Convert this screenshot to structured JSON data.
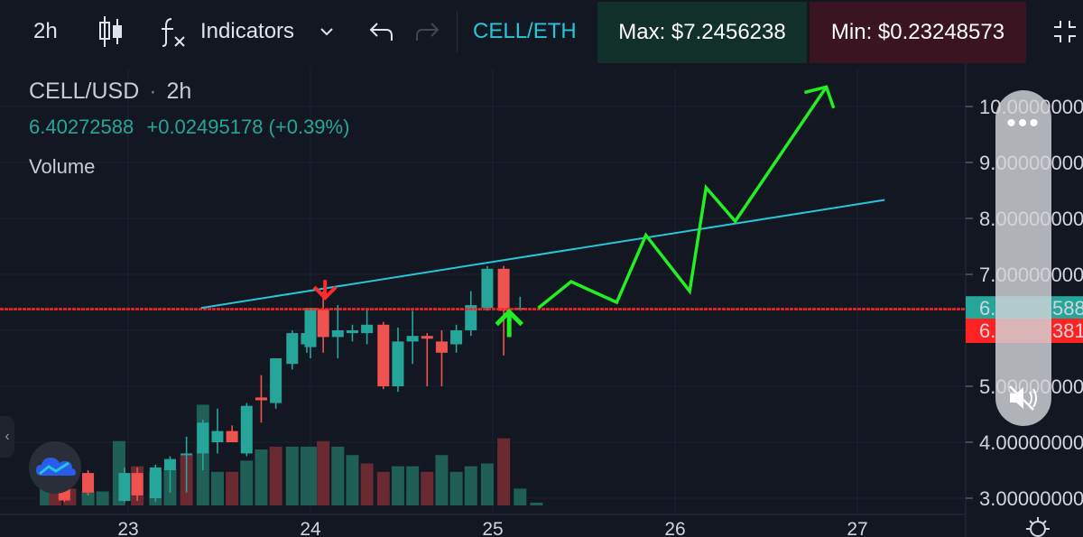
{
  "toolbar": {
    "interval": "2h",
    "indicators_label": "Indicators",
    "pair": "CELL/ETH",
    "max_label": "Max: $7.2456238",
    "min_label": "Min: $0.23248573"
  },
  "legend": {
    "symbol": "CELL/USD",
    "separator": "·",
    "interval": "2h",
    "price": "6.40272588",
    "change": "+0.02495178 (+0.39%)",
    "volume_label": "Volume"
  },
  "colors": {
    "background": "#131722",
    "up": "#26a69a",
    "down": "#ef5350",
    "trendline": "#26c6da",
    "arrow_forecast": "#22ee22",
    "arrow_red": "#ff2a2a",
    "support_line": "#ff2222"
  },
  "icons": {
    "candles": "candlestick-icon",
    "indicators": "function-fx-icon",
    "undo": "undo-icon",
    "redo": "redo-icon",
    "fullscreen": "collapse-icon",
    "menu": "grid-menu-icon",
    "settings": "gear-icon",
    "mute": "mute-icon",
    "brand": "cloud-logo-icon"
  },
  "chart_data": {
    "type": "bar",
    "x_ticks": [
      "23",
      "24",
      "25",
      "26",
      "27"
    ],
    "y_tick_labels": [
      "3.00000000",
      "4.00000000",
      "5.",
      "6.",
      "6.",
      "7.",
      "8.",
      "9.",
      "10."
    ],
    "y_labels_right": [
      {
        "value": 3.0,
        "label": "3.00000000"
      },
      {
        "value": 4.0,
        "label": "4.00000000"
      },
      {
        "value": 5.0,
        "label": "5.00000000"
      },
      {
        "value": 7.0,
        "label": "7.00000000"
      },
      {
        "value": 8.0,
        "label": "8.00000000"
      },
      {
        "value": 9.0,
        "label": "9.00000000"
      },
      {
        "value": 10.0,
        "label": "10.00000000"
      }
    ],
    "ylim": [
      2.93,
      10.9
    ],
    "price_tags": [
      {
        "value": 6.4,
        "label": "6.",
        "suffix": "588",
        "color": "#26a69a"
      },
      {
        "value": 6.0,
        "label": "6.",
        "suffix": "381",
        "color": "#ff2222"
      }
    ],
    "support_level": 6.38,
    "candles": [
      {
        "d": 22.65,
        "o": 3.5,
        "h": 3.5,
        "l": 2.93,
        "c": 2.96
      },
      {
        "d": 22.78,
        "o": 3.45,
        "h": 3.5,
        "l": 3.05,
        "c": 3.1
      },
      {
        "d": 22.98,
        "o": 2.95,
        "h": 3.55,
        "l": 2.93,
        "c": 3.45
      },
      {
        "d": 23.05,
        "o": 3.45,
        "h": 3.55,
        "l": 2.95,
        "c": 3.05
      },
      {
        "d": 23.15,
        "o": 3.0,
        "h": 3.6,
        "l": 2.93,
        "c": 3.55
      },
      {
        "d": 23.23,
        "o": 3.5,
        "h": 3.75,
        "l": 3.1,
        "c": 3.7
      },
      {
        "d": 23.32,
        "o": 3.8,
        "h": 4.1,
        "l": 3.1,
        "c": 3.8
      },
      {
        "d": 23.41,
        "o": 3.8,
        "h": 4.4,
        "l": 3.5,
        "c": 4.35
      },
      {
        "d": 23.49,
        "o": 4.0,
        "h": 4.6,
        "l": 3.8,
        "c": 4.2
      },
      {
        "d": 23.57,
        "o": 4.2,
        "h": 4.3,
        "l": 4.0,
        "c": 4.0
      },
      {
        "d": 23.65,
        "o": 3.8,
        "h": 4.7,
        "l": 3.75,
        "c": 4.65
      },
      {
        "d": 23.73,
        "o": 4.8,
        "h": 5.2,
        "l": 4.35,
        "c": 4.75
      },
      {
        "d": 23.81,
        "o": 4.7,
        "h": 5.5,
        "l": 4.6,
        "c": 5.5
      },
      {
        "d": 23.9,
        "o": 5.4,
        "h": 6.0,
        "l": 5.3,
        "c": 5.95
      },
      {
        "d": 23.98,
        "o": 5.75,
        "h": 6.0,
        "l": 5.6,
        "c": 5.95
      },
      {
        "d": 24.0,
        "o": 5.7,
        "h": 6.4,
        "l": 5.5,
        "c": 6.4
      },
      {
        "d": 24.07,
        "o": 6.38,
        "h": 6.7,
        "l": 5.6,
        "c": 5.88
      },
      {
        "d": 24.15,
        "o": 5.88,
        "h": 6.45,
        "l": 5.5,
        "c": 6.0
      },
      {
        "d": 24.23,
        "o": 5.95,
        "h": 6.1,
        "l": 5.8,
        "c": 6.0
      },
      {
        "d": 24.31,
        "o": 5.95,
        "h": 6.4,
        "l": 5.75,
        "c": 6.1
      },
      {
        "d": 24.4,
        "o": 6.1,
        "h": 6.15,
        "l": 4.95,
        "c": 5.0
      },
      {
        "d": 24.48,
        "o": 5.0,
        "h": 6.05,
        "l": 4.9,
        "c": 5.8
      },
      {
        "d": 24.56,
        "o": 5.8,
        "h": 6.35,
        "l": 5.4,
        "c": 5.9
      },
      {
        "d": 24.64,
        "o": 5.9,
        "h": 5.95,
        "l": 5.0,
        "c": 5.85
      },
      {
        "d": 24.72,
        "o": 5.8,
        "h": 6.0,
        "l": 5.0,
        "c": 5.6
      },
      {
        "d": 24.8,
        "o": 5.75,
        "h": 6.1,
        "l": 5.6,
        "c": 6.0
      },
      {
        "d": 24.88,
        "o": 6.0,
        "h": 6.7,
        "l": 5.9,
        "c": 6.45
      },
      {
        "d": 24.97,
        "o": 6.4,
        "h": 7.15,
        "l": 6.35,
        "c": 7.1
      },
      {
        "d": 25.06,
        "o": 7.1,
        "h": 7.15,
        "l": 5.55,
        "c": 6.35
      },
      {
        "d": 25.15,
        "o": 6.38,
        "h": 6.6,
        "l": 6.35,
        "c": 6.4
      }
    ],
    "volume": [
      {
        "d": 22.55,
        "v": 0.7,
        "up": true
      },
      {
        "d": 22.6,
        "v": 0.5,
        "up": false
      },
      {
        "d": 22.68,
        "v": 0.3,
        "up": false
      },
      {
        "d": 22.78,
        "v": 0.25,
        "up": true
      },
      {
        "d": 22.86,
        "v": 0.25,
        "up": true
      },
      {
        "d": 22.95,
        "v": 1.15,
        "up": true
      },
      {
        "d": 23.05,
        "v": 0.7,
        "up": false
      },
      {
        "d": 23.15,
        "v": 0.6,
        "up": true
      },
      {
        "d": 23.23,
        "v": 0.65,
        "up": true
      },
      {
        "d": 23.32,
        "v": 0.9,
        "up": false
      },
      {
        "d": 23.41,
        "v": 1.8,
        "up": true
      },
      {
        "d": 23.49,
        "v": 0.6,
        "up": true
      },
      {
        "d": 23.57,
        "v": 0.6,
        "up": false
      },
      {
        "d": 23.65,
        "v": 0.8,
        "up": true
      },
      {
        "d": 23.73,
        "v": 1.0,
        "up": true
      },
      {
        "d": 23.81,
        "v": 1.05,
        "up": false
      },
      {
        "d": 23.9,
        "v": 1.05,
        "up": true
      },
      {
        "d": 23.98,
        "v": 1.05,
        "up": true
      },
      {
        "d": 24.0,
        "v": 1.05,
        "up": true
      },
      {
        "d": 24.07,
        "v": 1.15,
        "up": false
      },
      {
        "d": 24.15,
        "v": 1.05,
        "up": true
      },
      {
        "d": 24.23,
        "v": 0.9,
        "up": true
      },
      {
        "d": 24.31,
        "v": 0.75,
        "up": false
      },
      {
        "d": 24.4,
        "v": 0.6,
        "up": false
      },
      {
        "d": 24.48,
        "v": 0.7,
        "up": true
      },
      {
        "d": 24.56,
        "v": 0.7,
        "up": true
      },
      {
        "d": 24.64,
        "v": 0.6,
        "up": false
      },
      {
        "d": 24.72,
        "v": 0.9,
        "up": true
      },
      {
        "d": 24.8,
        "v": 0.6,
        "up": true
      },
      {
        "d": 24.88,
        "v": 0.7,
        "up": true
      },
      {
        "d": 24.97,
        "v": 0.75,
        "up": true
      },
      {
        "d": 25.06,
        "v": 1.2,
        "up": false
      },
      {
        "d": 25.15,
        "v": 0.3,
        "up": true
      },
      {
        "d": 25.24,
        "v": 0.05,
        "up": true
      }
    ],
    "trendline": [
      {
        "d": 23.4,
        "p": 6.4
      },
      {
        "d": 27.15,
        "p": 8.33
      }
    ],
    "forecast_path": [
      {
        "d": 25.25,
        "p": 6.4
      },
      {
        "d": 25.43,
        "p": 6.87
      },
      {
        "d": 25.68,
        "p": 6.5
      },
      {
        "d": 25.84,
        "p": 7.7
      },
      {
        "d": 26.08,
        "p": 6.7
      },
      {
        "d": 26.17,
        "p": 8.55
      },
      {
        "d": 26.33,
        "p": 7.95
      },
      {
        "d": 26.83,
        "p": 10.35
      }
    ],
    "forecast_arrowhead": [
      {
        "d": 26.71,
        "p": 10.25
      },
      {
        "d": 26.83,
        "p": 10.35
      },
      {
        "d": 26.87,
        "p": 9.97
      }
    ],
    "down_arrow": {
      "d": 24.08,
      "p_top": 6.9,
      "p_tip": 6.58
    },
    "up_arrow": {
      "d": 25.09,
      "p_tip": 6.33,
      "p_bottom": 5.88
    }
  }
}
